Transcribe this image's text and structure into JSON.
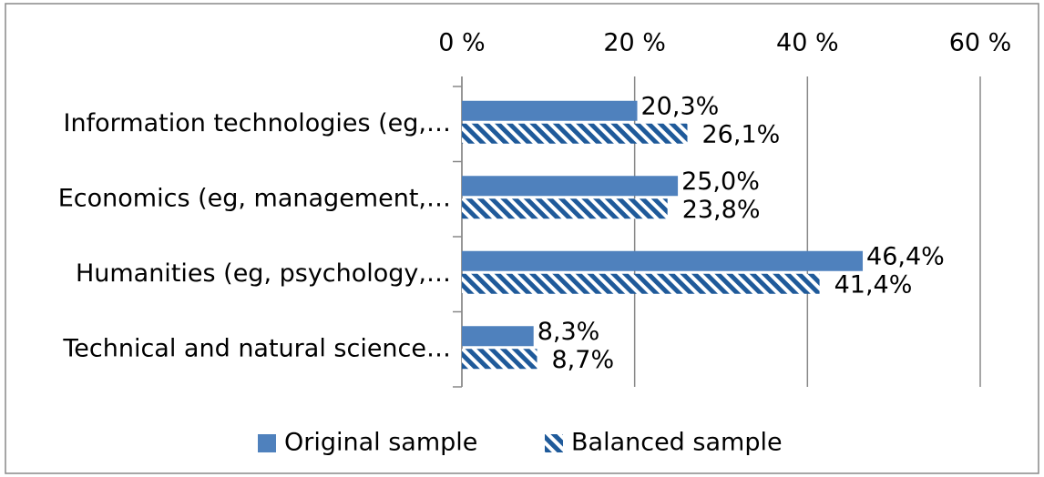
{
  "chart_data": {
    "type": "barh",
    "categories": [
      "Information technologies (eg,…",
      "Economics (eg, management,…",
      "Humanities (eg, psychology,…",
      "Technical and natural science…"
    ],
    "series": [
      {
        "name": "Original sample",
        "color": "#4f81bd",
        "pattern": "solid",
        "values": [
          20.3,
          25.0,
          46.4,
          8.3
        ],
        "value_labels": [
          "20,3%",
          "25,0%",
          "46,4%",
          "8,3%"
        ]
      },
      {
        "name": "Balanced sample",
        "color": "#1f5a9a",
        "pattern": "hatch",
        "values": [
          26.1,
          23.8,
          41.4,
          8.7
        ],
        "value_labels": [
          "26,1%",
          "23,8%",
          "41,4%",
          "8,7%"
        ]
      }
    ],
    "xlim": [
      0,
      60
    ],
    "xticks": [
      {
        "value": 0,
        "label": "0 %"
      },
      {
        "value": 20,
        "label": "20 %"
      },
      {
        "value": 40,
        "label": "40 %"
      },
      {
        "value": 60,
        "label": "60 %"
      }
    ],
    "grid": true,
    "legend": "bottom"
  }
}
